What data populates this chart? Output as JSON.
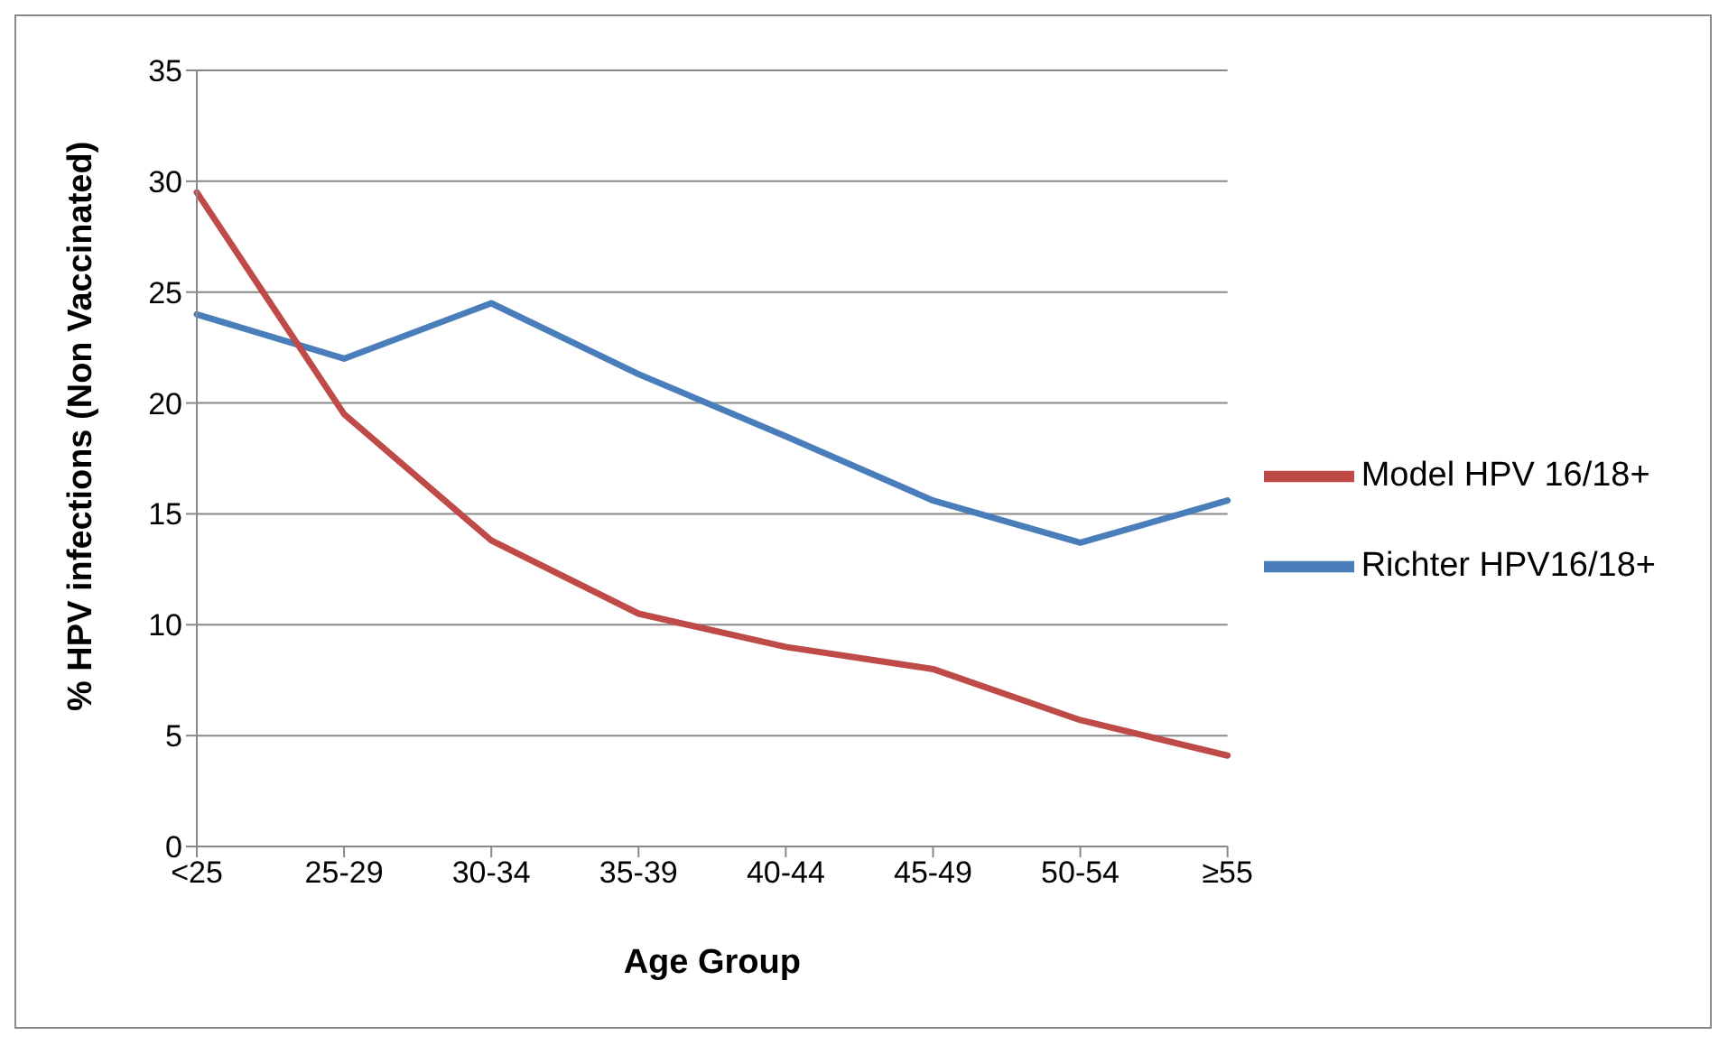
{
  "chart_data": {
    "type": "line",
    "xlabel": "Age Group",
    "ylabel": "% HPV infections (Non Vaccinated)",
    "categories": [
      "<25",
      "25-29",
      "30-34",
      "35-39",
      "40-44",
      "45-49",
      "50-54",
      "≥55"
    ],
    "series": [
      {
        "name": "Richter HPV16/18+",
        "color": "#4a7ebb",
        "values": [
          24,
          22,
          24.5,
          21.3,
          18.5,
          15.6,
          13.7,
          15.6
        ]
      },
      {
        "name": "Model HPV 16/18+",
        "color": "#be4b48",
        "values": [
          29.5,
          19.5,
          13.8,
          10.5,
          9,
          8,
          5.7,
          4.1
        ]
      }
    ],
    "ylim": [
      0,
      35
    ],
    "yticks": [
      0,
      5,
      10,
      15,
      20,
      25,
      30,
      35
    ],
    "grid": "y",
    "legend": "right",
    "marker": "none",
    "line_style": "solid"
  }
}
